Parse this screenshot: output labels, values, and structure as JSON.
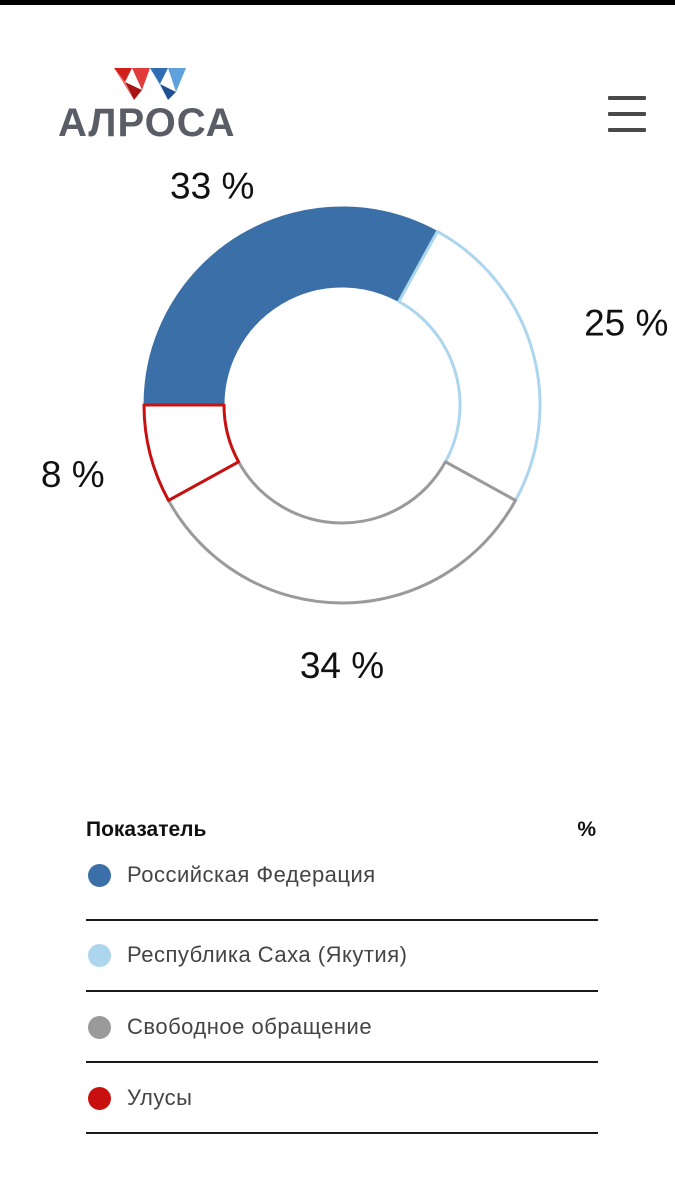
{
  "header": {
    "logo_text": "АЛРОСА",
    "menu_icon": "hamburger-menu-icon"
  },
  "chart_data": {
    "type": "pie",
    "categories": [
      "Российская Федерация",
      "Республика Саха (Якутия)",
      "Свободное обращение",
      "Улусы"
    ],
    "values": [
      33,
      25,
      34,
      8
    ],
    "labels": [
      "33 %",
      "25 %",
      "34 %",
      "8 %"
    ],
    "colors": [
      "#3b6fa8",
      "#acd6ee",
      "#9a9a9a",
      "#c81010"
    ],
    "fill_styles": [
      "filled",
      "outline",
      "outline",
      "outline"
    ],
    "title": "",
    "legend_placement": "bottom"
  },
  "legend": {
    "title": "Показатель",
    "unit": "%",
    "items": [
      {
        "label": "Российская Федерация",
        "color": "#3b6fa8"
      },
      {
        "label": "Республика Саха (Якутия)",
        "color": "#acd6ee"
      },
      {
        "label": "Свободное обращение",
        "color": "#9a9a9a"
      },
      {
        "label": "Улусы",
        "color": "#c81010"
      }
    ]
  }
}
